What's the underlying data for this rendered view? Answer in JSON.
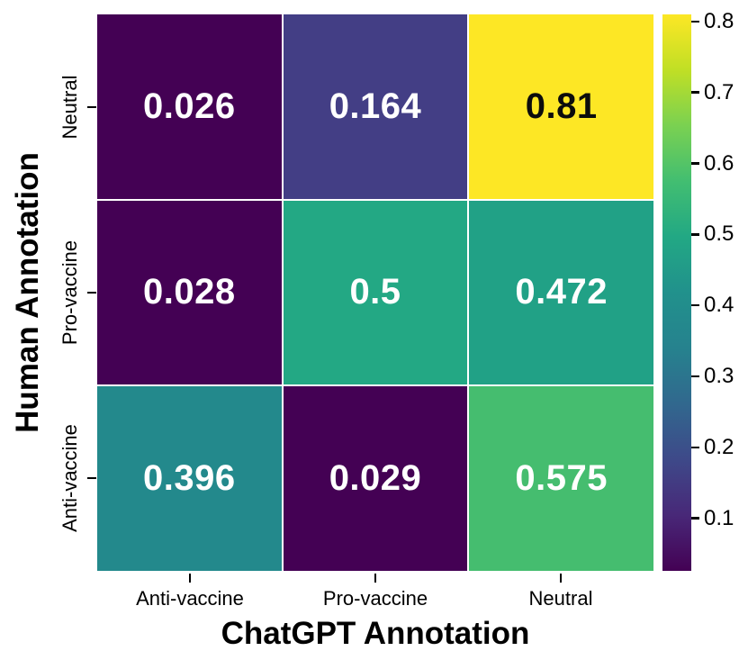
{
  "chart_data": {
    "type": "heatmap",
    "xlabel": "ChatGPT Annotation",
    "ylabel": "Human Annotation",
    "x_categories": [
      "Anti-vaccine",
      "Pro-vaccine",
      "Neutral"
    ],
    "y_categories": [
      "Neutral",
      "Pro-vaccine",
      "Anti-vaccine"
    ],
    "values": [
      [
        0.026,
        0.164,
        0.81
      ],
      [
        0.028,
        0.5,
        0.472
      ],
      [
        0.396,
        0.029,
        0.575
      ]
    ],
    "cell_labels": [
      [
        "0.026",
        "0.164",
        "0.81"
      ],
      [
        "0.028",
        "0.5",
        "0.472"
      ],
      [
        "0.396",
        "0.029",
        "0.575"
      ]
    ],
    "cell_colors": [
      [
        "#440154",
        "#433e85",
        "#fde725"
      ],
      [
        "#440154",
        "#23a884",
        "#21a186"
      ],
      [
        "#23898c",
        "#440154",
        "#45bd6f"
      ]
    ],
    "cell_text_colors": [
      [
        "#ffffff",
        "#ffffff",
        "#0c0c0c"
      ],
      [
        "#ffffff",
        "#ffffff",
        "#ffffff"
      ],
      [
        "#ffffff",
        "#ffffff",
        "#ffffff"
      ]
    ],
    "colormap": "viridis",
    "vmin": 0.026,
    "vmax": 0.81,
    "grid_line_color": "#ffffff",
    "colorbar": {
      "ticks": [
        0.8,
        0.7,
        0.6,
        0.5,
        0.4,
        0.3,
        0.2,
        0.1
      ],
      "tick_labels": [
        "0.8",
        "0.7",
        "0.6",
        "0.5",
        "0.4",
        "0.3",
        "0.2",
        "0.1"
      ],
      "gradient_stops": [
        {
          "pos": 0,
          "color": "#fde725"
        },
        {
          "pos": 10,
          "color": "#c0df25"
        },
        {
          "pos": 20,
          "color": "#7ad151"
        },
        {
          "pos": 30,
          "color": "#42be71"
        },
        {
          "pos": 40,
          "color": "#22a884"
        },
        {
          "pos": 50,
          "color": "#21918c"
        },
        {
          "pos": 60,
          "color": "#26828e"
        },
        {
          "pos": 70,
          "color": "#31688e"
        },
        {
          "pos": 80,
          "color": "#3e4989"
        },
        {
          "pos": 90,
          "color": "#482878"
        },
        {
          "pos": 100,
          "color": "#440154"
        }
      ]
    }
  }
}
